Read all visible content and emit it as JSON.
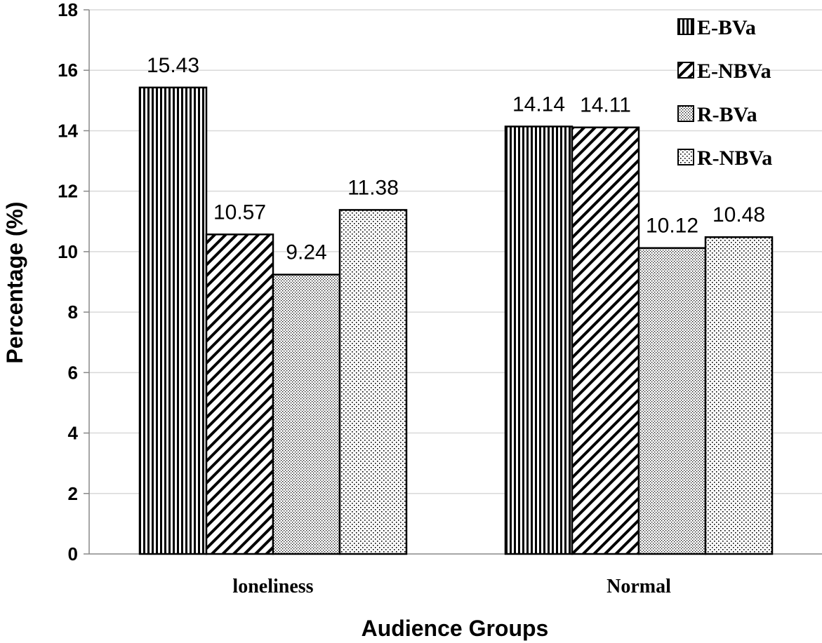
{
  "chart_data": {
    "type": "bar",
    "title": "",
    "xlabel": "Audience Groups",
    "ylabel": "Percentage (%)",
    "ylim": [
      0,
      18
    ],
    "yticks": [
      0,
      2,
      4,
      6,
      8,
      10,
      12,
      14,
      16,
      18
    ],
    "grid": true,
    "legend_position": "top-right",
    "categories": [
      "loneliness",
      "Normal"
    ],
    "series": [
      {
        "name": "E-BVa",
        "pattern": "vertical-lines",
        "values": [
          15.43,
          14.14
        ]
      },
      {
        "name": "E-NBVa",
        "pattern": "diagonal-lines",
        "values": [
          10.57,
          14.11
        ]
      },
      {
        "name": "R-BVa",
        "pattern": "fine-dots",
        "values": [
          9.24,
          10.12
        ]
      },
      {
        "name": "R-NBVa",
        "pattern": "coarse-dots",
        "values": [
          11.38,
          10.48
        ]
      }
    ],
    "data_labels": [
      [
        "15.43",
        "14.14"
      ],
      [
        "10.57",
        "14.11"
      ],
      [
        "9.24",
        "10.12"
      ],
      [
        "11.38",
        "10.48"
      ]
    ],
    "colors": {
      "stroke": "#000000",
      "grid": "#d9d9d9",
      "fill": "#ffffff"
    }
  }
}
